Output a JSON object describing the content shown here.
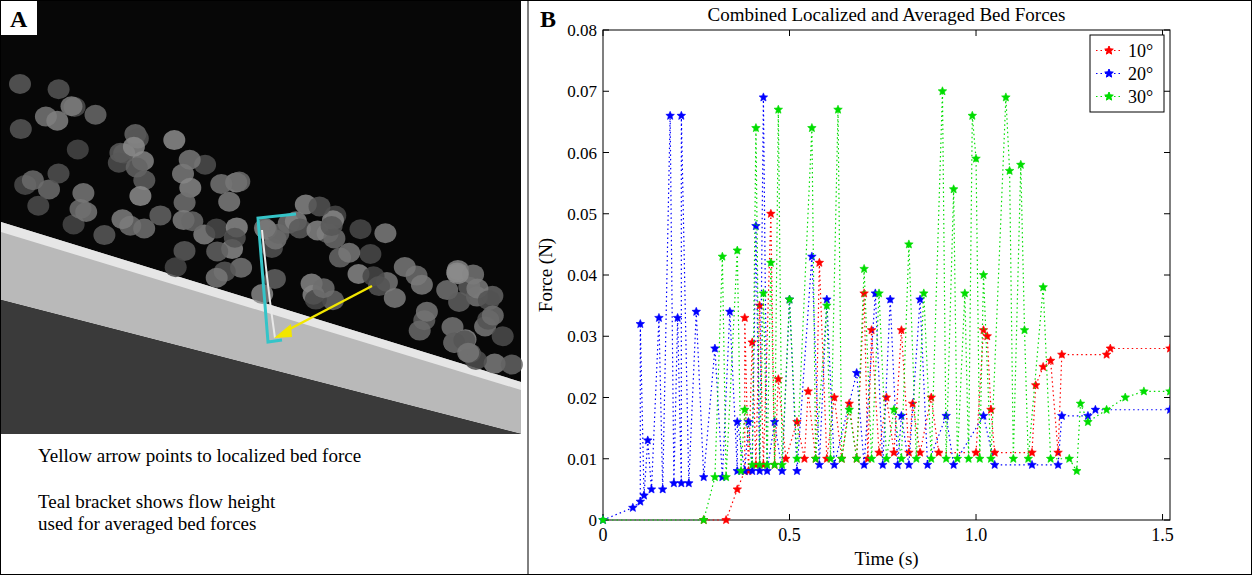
{
  "panels": {
    "a": {
      "label": "A",
      "captions": [
        "Yellow arrow points to localized bed force",
        "Teal bracket shows flow height",
        "used for averaged bed forces"
      ]
    },
    "b": {
      "label": "B"
    }
  },
  "chart_data": {
    "type": "line",
    "title": "Combined Localized and Averaged Bed Forces",
    "x_label": "Time (s)",
    "y_label": "Force (N)",
    "xlim": [
      0,
      1.52
    ],
    "xticks": [
      0,
      0.5,
      {
        "value": 1,
        "label": "1.0"
      },
      1.5
    ],
    "ylim": [
      0,
      0.08
    ],
    "yticks": [
      0,
      0.01,
      0.02,
      0.03,
      0.04,
      0.05,
      0.06,
      0.07,
      0.08
    ],
    "legend": "top-right",
    "marker": "star",
    "line_style": "dotted",
    "grid": false,
    "series": [
      {
        "name": "10°",
        "color": "#ff0000",
        "x": [
          0.27,
          0.33,
          0.36,
          0.38,
          0.38,
          0.39,
          0.4,
          0.41,
          0.42,
          0.43,
          0.45,
          0.46,
          0.47,
          0.49,
          0.52,
          0.54,
          0.55,
          0.57,
          0.58,
          0.6,
          0.62,
          0.64,
          0.66,
          0.68,
          0.7,
          0.71,
          0.72,
          0.74,
          0.76,
          0.78,
          0.8,
          0.82,
          0.83,
          0.85,
          0.88,
          0.9,
          1.0,
          1.02,
          1.03,
          1.04,
          1.05,
          1.15,
          1.16,
          1.18,
          1.2,
          1.22,
          1.23,
          1.35,
          1.36,
          1.52
        ],
        "values": [
          0,
          0,
          0.005,
          0.008,
          0.033,
          0.008,
          0.029,
          0.009,
          0.035,
          0.009,
          0.05,
          0.009,
          0.023,
          0.01,
          0.016,
          0.01,
          0.021,
          0.01,
          0.042,
          0.01,
          0.02,
          0.01,
          0.019,
          0.01,
          0.037,
          0.01,
          0.031,
          0.011,
          0.02,
          0.011,
          0.031,
          0.011,
          0.019,
          0.011,
          0.02,
          0.011,
          0.011,
          0.031,
          0.03,
          0.018,
          0.011,
          0.011,
          0.022,
          0.025,
          0.026,
          0.011,
          0.027,
          0.027,
          0.028,
          0.028
        ]
      },
      {
        "name": "20°",
        "color": "#0000ff",
        "x": [
          0,
          0.08,
          0.1,
          0.1,
          0.11,
          0.12,
          0.13,
          0.15,
          0.16,
          0.18,
          0.19,
          0.2,
          0.21,
          0.21,
          0.23,
          0.25,
          0.27,
          0.3,
          0.32,
          0.34,
          0.36,
          0.36,
          0.38,
          0.39,
          0.4,
          0.41,
          0.42,
          0.43,
          0.44,
          0.46,
          0.48,
          0.5,
          0.52,
          0.56,
          0.58,
          0.6,
          0.62,
          0.68,
          0.7,
          0.73,
          0.75,
          0.77,
          0.79,
          0.8,
          0.82,
          0.85,
          0.87,
          0.92,
          0.94,
          1.02,
          1.05,
          1.15,
          1.22,
          1.23,
          1.3,
          1.32,
          1.52
        ],
        "values": [
          0,
          0.002,
          0.003,
          0.032,
          0.004,
          0.013,
          0.005,
          0.033,
          0.005,
          0.066,
          0.006,
          0.033,
          0.006,
          0.066,
          0.006,
          0.034,
          0.007,
          0.028,
          0.007,
          0.034,
          0.008,
          0.016,
          0.008,
          0.016,
          0.008,
          0.048,
          0.008,
          0.069,
          0.008,
          0.016,
          0.008,
          0.036,
          0.008,
          0.043,
          0.009,
          0.036,
          0.009,
          0.024,
          0.009,
          0.037,
          0.009,
          0.036,
          0.009,
          0.017,
          0.009,
          0.036,
          0.009,
          0.017,
          0.009,
          0.017,
          0.009,
          0.009,
          0.009,
          0.017,
          0.017,
          0.018,
          0.018
        ]
      },
      {
        "name": "30°",
        "color": "#00dd00",
        "x": [
          0,
          0.27,
          0.3,
          0.32,
          0.33,
          0.36,
          0.37,
          0.38,
          0.4,
          0.41,
          0.42,
          0.43,
          0.44,
          0.45,
          0.46,
          0.47,
          0.48,
          0.5,
          0.52,
          0.56,
          0.57,
          0.6,
          0.61,
          0.63,
          0.64,
          0.66,
          0.68,
          0.7,
          0.72,
          0.74,
          0.76,
          0.78,
          0.8,
          0.82,
          0.84,
          0.86,
          0.88,
          0.91,
          0.92,
          0.94,
          0.95,
          0.97,
          0.98,
          0.99,
          1.0,
          1.01,
          1.02,
          1.04,
          1.08,
          1.09,
          1.1,
          1.12,
          1.13,
          1.14,
          1.18,
          1.2,
          1.25,
          1.27,
          1.28,
          1.3,
          1.35,
          1.4,
          1.45,
          1.52
        ],
        "values": [
          0,
          0,
          0.007,
          0.043,
          0.007,
          0.044,
          0.008,
          0.018,
          0.009,
          0.064,
          0.009,
          0.037,
          0.009,
          0.042,
          0.009,
          0.067,
          0.009,
          0.036,
          0.01,
          0.064,
          0.01,
          0.035,
          0.01,
          0.067,
          0.01,
          0.018,
          0.01,
          0.041,
          0.01,
          0.037,
          0.01,
          0.018,
          0.01,
          0.045,
          0.01,
          0.037,
          0.01,
          0.07,
          0.01,
          0.054,
          0.01,
          0.037,
          0.01,
          0.066,
          0.059,
          0.01,
          0.04,
          0.01,
          0.069,
          0.057,
          0.01,
          0.058,
          0.031,
          0.01,
          0.038,
          0.01,
          0.01,
          0.008,
          0.019,
          0.016,
          0.018,
          0.02,
          0.021,
          0.021
        ]
      }
    ]
  }
}
